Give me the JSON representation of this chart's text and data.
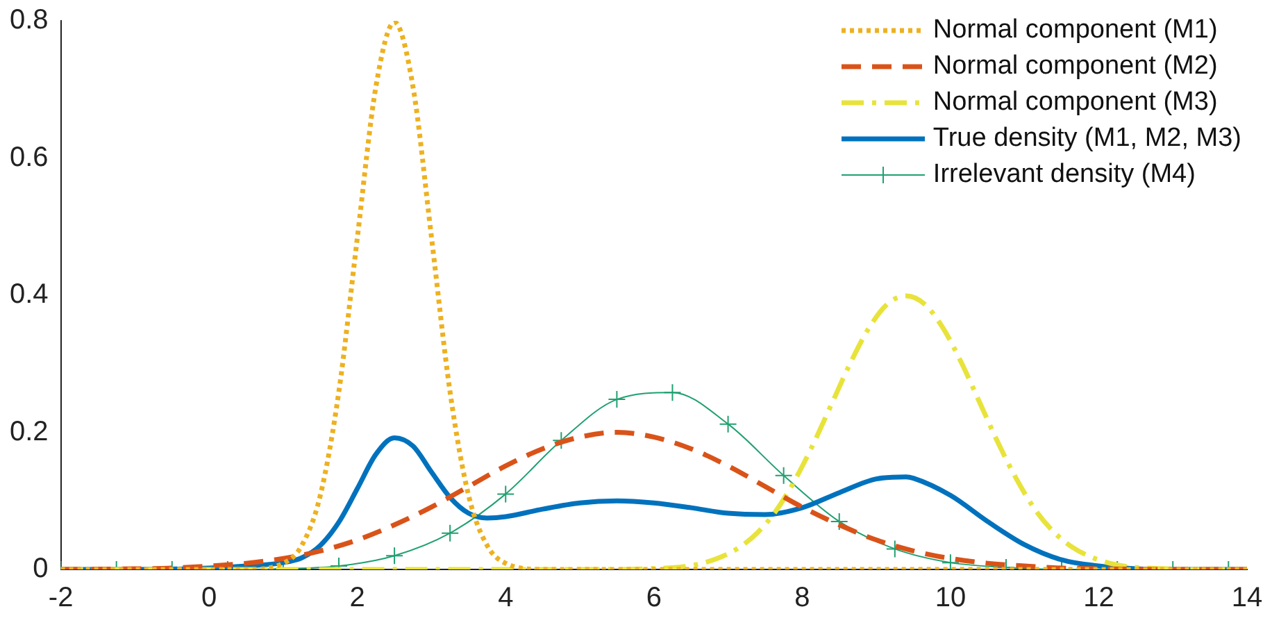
{
  "chart_data": {
    "type": "line",
    "xlim": [
      -2,
      14
    ],
    "xticks": [
      -2,
      0,
      2,
      4,
      6,
      8,
      10,
      12,
      14
    ],
    "ylim": [
      0,
      0.8
    ],
    "yticks": [
      0,
      0.2,
      0.4,
      0.6,
      0.8
    ],
    "grid": false,
    "legend": "top right",
    "marker": "none",
    "series": [
      {
        "name": "Normal component (M1)",
        "color": "#edb120",
        "line_style": "dotted",
        "x": [
          -2,
          0.5,
          1,
          1.25,
          1.5,
          1.75,
          2,
          2.25,
          2.5,
          2.75,
          3,
          3.25,
          3.5,
          3.75,
          4,
          4.5,
          14
        ],
        "values": [
          0,
          0,
          0.009,
          0.035,
          0.108,
          0.259,
          0.484,
          0.704,
          0.798,
          0.704,
          0.484,
          0.259,
          0.108,
          0.035,
          0.009,
          0,
          0
        ]
      },
      {
        "name": "Normal component (M2)",
        "color": "#d95319",
        "line_style": "dashed",
        "x": [
          -2,
          -1,
          -0.5,
          0,
          0.5,
          1,
          1.5,
          2,
          2.5,
          3,
          3.5,
          4,
          4.5,
          5,
          5.5,
          6,
          6.5,
          7,
          7.5,
          8,
          8.5,
          9,
          9.5,
          10,
          10.5,
          11,
          11.5,
          12,
          13,
          14
        ],
        "values": [
          0,
          0.001,
          0.002,
          0.005,
          0.009,
          0.016,
          0.027,
          0.043,
          0.065,
          0.091,
          0.121,
          0.151,
          0.176,
          0.193,
          0.2,
          0.193,
          0.176,
          0.151,
          0.121,
          0.091,
          0.065,
          0.043,
          0.027,
          0.016,
          0.009,
          0.005,
          0.002,
          0.001,
          0,
          0
        ]
      },
      {
        "name": "Normal component (M3)",
        "color": "#e8e33a",
        "line_style": "dashdot",
        "x": [
          -2,
          5.4,
          5.9,
          6.4,
          6.65,
          6.9,
          7.15,
          7.4,
          7.65,
          7.9,
          8.15,
          8.4,
          8.65,
          8.9,
          9.15,
          9.4,
          9.65,
          9.9,
          10.15,
          10.4,
          10.65,
          10.9,
          11.15,
          11.4,
          11.65,
          11.9,
          12.15,
          12.4,
          12.9,
          13.4,
          14
        ],
        "values": [
          0,
          0,
          0.001,
          0.004,
          0.009,
          0.018,
          0.032,
          0.054,
          0.086,
          0.13,
          0.183,
          0.242,
          0.301,
          0.352,
          0.387,
          0.399,
          0.387,
          0.352,
          0.301,
          0.242,
          0.183,
          0.13,
          0.086,
          0.054,
          0.032,
          0.018,
          0.009,
          0.004,
          0.001,
          0,
          0
        ]
      },
      {
        "name": "True density (M1, M2, M3)",
        "color": "#0072bd",
        "line_style": "solid",
        "x": [
          -2,
          -1,
          0,
          0.5,
          1,
          1.25,
          1.5,
          1.75,
          2,
          2.25,
          2.5,
          2.75,
          3,
          3.25,
          3.5,
          3.75,
          4,
          4.5,
          5,
          5.5,
          6,
          6.5,
          7,
          7.5,
          8,
          8.5,
          9,
          9.4,
          9.5,
          10,
          10.5,
          11,
          11.5,
          12,
          12.5,
          13,
          14
        ],
        "values": [
          0,
          0,
          0.002,
          0.005,
          0.01,
          0.017,
          0.035,
          0.069,
          0.118,
          0.168,
          0.192,
          0.18,
          0.142,
          0.105,
          0.082,
          0.075,
          0.077,
          0.088,
          0.097,
          0.1,
          0.097,
          0.09,
          0.082,
          0.08,
          0.09,
          0.112,
          0.132,
          0.135,
          0.133,
          0.108,
          0.07,
          0.036,
          0.014,
          0.005,
          0.001,
          0,
          0
        ]
      },
      {
        "name": "Irrelevant density (M4)",
        "color": "#20a070",
        "line_style": "solid",
        "marker": "cross",
        "x": [
          -2,
          -1.25,
          -0.5,
          0.25,
          1,
          1.75,
          2.5,
          3.25,
          4,
          4.75,
          5.5,
          6.25,
          7,
          7.75,
          8.5,
          9.25,
          10,
          10.75,
          11.5,
          12.25,
          13,
          13.75
        ],
        "values": [
          0,
          0,
          0,
          0,
          0.001,
          0.005,
          0.02,
          0.053,
          0.11,
          0.188,
          0.248,
          0.258,
          0.212,
          0.137,
          0.07,
          0.03,
          0.01,
          0.003,
          0,
          0,
          0,
          0
        ]
      }
    ]
  }
}
